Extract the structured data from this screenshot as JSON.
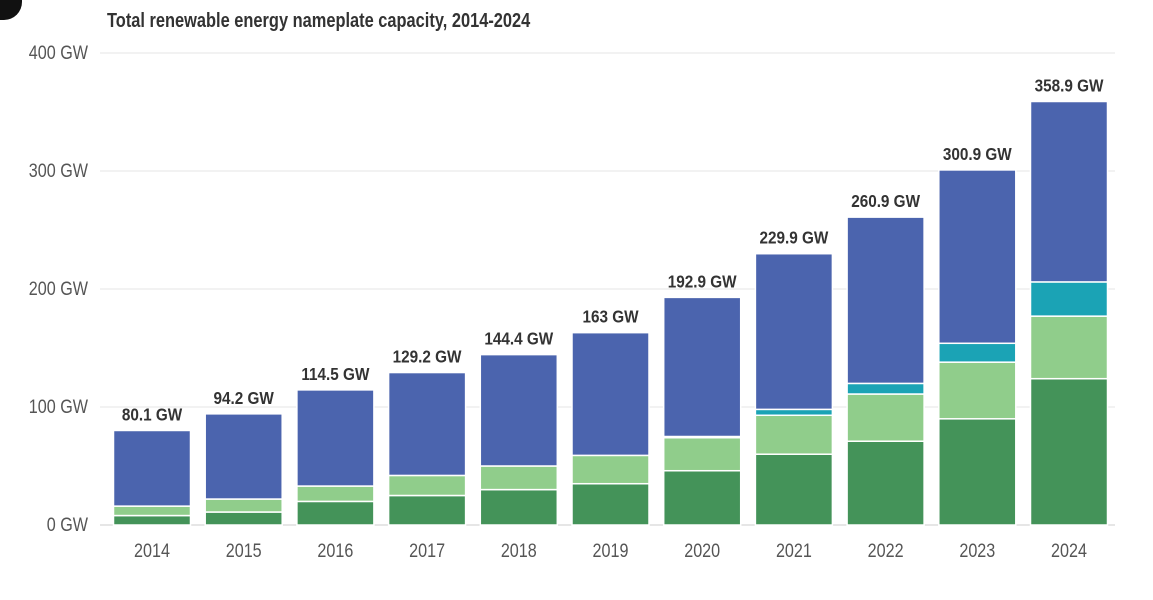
{
  "chart_data": {
    "type": "bar",
    "stacked": true,
    "title": "Total renewable energy nameplate capacity, 2014-2024",
    "xlabel": "",
    "ylabel": "",
    "ylim": [
      0,
      400
    ],
    "y_ticks": [
      "0 GW",
      "100 GW",
      "200 GW",
      "300 GW",
      "400 GW"
    ],
    "y_tick_values": [
      0,
      100,
      200,
      300,
      400
    ],
    "grid": true,
    "categories": [
      "2014",
      "2015",
      "2016",
      "2017",
      "2018",
      "2019",
      "2020",
      "2021",
      "2022",
      "2023",
      "2024"
    ],
    "totals": [
      80.1,
      94.2,
      114.5,
      129.2,
      144.4,
      163,
      192.9,
      229.9,
      260.9,
      300.9,
      358.9
    ],
    "total_labels": [
      "80.1 GW",
      "94.2 GW",
      "114.5 GW",
      "129.2 GW",
      "144.4 GW",
      "163 GW",
      "192.9 GW",
      "229.9 GW",
      "260.9 GW",
      "300.9 GW",
      "358.9 GW"
    ],
    "series": [
      {
        "values": [
          8,
          11,
          20,
          25,
          30,
          35,
          46,
          60,
          71,
          90,
          124
        ],
        "color": "#449359"
      },
      {
        "values": [
          8,
          11,
          13,
          17,
          20,
          24,
          28,
          33,
          40,
          48,
          53
        ],
        "color": "#90cd8b"
      },
      {
        "values": [
          0,
          0,
          0,
          0,
          0,
          0,
          1,
          5,
          9,
          16,
          29
        ],
        "color": "#1ba3b5"
      },
      {
        "values": [
          64.1,
          72.2,
          81.5,
          87.2,
          94.4,
          104,
          117.9,
          131.9,
          140.9,
          146.9,
          152.9
        ],
        "color": "#4b64ae"
      }
    ]
  }
}
